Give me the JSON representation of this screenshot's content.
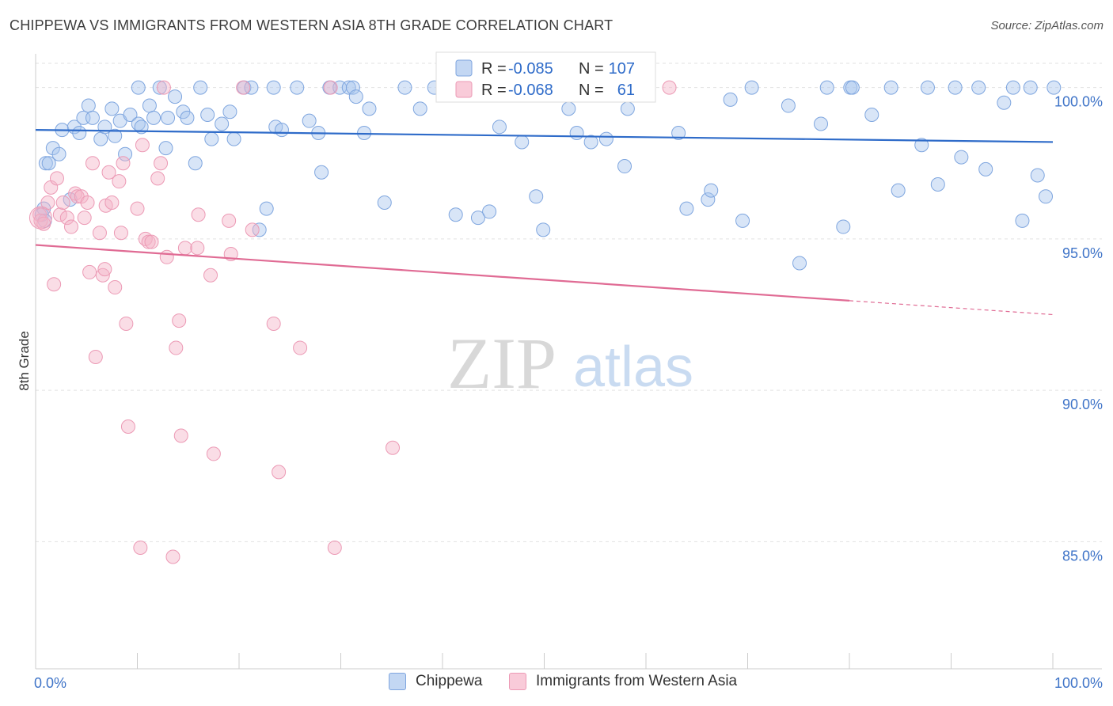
{
  "title": "CHIPPEWA VS IMMIGRANTS FROM WESTERN ASIA 8TH GRADE CORRELATION CHART",
  "source": "Source: ZipAtlas.com",
  "watermark": {
    "zip": "ZIP",
    "atlas": "atlas"
  },
  "chart_data": {
    "type": "scatter",
    "ylabel": "8th Grade",
    "xlim": [
      0,
      100
    ],
    "ylim": [
      80.8,
      100.8
    ],
    "x_tick_labels": [
      "0.0%",
      "100.0%"
    ],
    "y_ticks": [
      {
        "value": 100,
        "label": "100.0%"
      },
      {
        "value": 95,
        "label": "95.0%"
      },
      {
        "value": 90,
        "label": "90.0%"
      },
      {
        "value": 85,
        "label": "85.0%"
      }
    ],
    "grid": true,
    "legend_position": "top-center",
    "series": [
      {
        "name": "Chippewa",
        "color": "#a9c6ee",
        "line_color": "#2e6bc9",
        "stats": {
          "r_label": "R =",
          "r": "-0.085",
          "n_label": "N =",
          "n": "107"
        },
        "trend": {
          "x0": 0,
          "y0": 98.6,
          "x1": 100,
          "y1": 98.2
        },
        "points": [
          [
            0.8,
            96.0
          ],
          [
            0.6,
            95.8
          ],
          [
            0.9,
            95.6
          ],
          [
            1.0,
            97.5
          ],
          [
            1.3,
            97.5
          ],
          [
            1.7,
            98.0
          ],
          [
            2.3,
            97.8
          ],
          [
            2.6,
            98.6
          ],
          [
            3.4,
            96.3
          ],
          [
            3.8,
            98.7
          ],
          [
            4.3,
            98.5
          ],
          [
            4.7,
            99.0
          ],
          [
            5.2,
            99.4
          ],
          [
            5.6,
            99.0
          ],
          [
            6.4,
            98.3
          ],
          [
            6.8,
            98.7
          ],
          [
            7.5,
            99.3
          ],
          [
            7.8,
            98.4
          ],
          [
            8.3,
            98.9
          ],
          [
            8.8,
            97.8
          ],
          [
            9.3,
            99.1
          ],
          [
            10.1,
            98.8
          ],
          [
            10.4,
            98.7
          ],
          [
            10.1,
            100.0
          ],
          [
            11.2,
            99.4
          ],
          [
            11.6,
            99.0
          ],
          [
            12.2,
            100.0
          ],
          [
            12.8,
            98.0
          ],
          [
            13.0,
            99.0
          ],
          [
            13.7,
            99.7
          ],
          [
            14.5,
            99.2
          ],
          [
            14.9,
            99.0
          ],
          [
            15.7,
            97.5
          ],
          [
            16.2,
            100.0
          ],
          [
            16.9,
            99.1
          ],
          [
            17.3,
            98.3
          ],
          [
            18.3,
            98.8
          ],
          [
            19.1,
            99.2
          ],
          [
            19.5,
            98.3
          ],
          [
            20.5,
            100.0
          ],
          [
            21.2,
            100.0
          ],
          [
            22.0,
            95.3
          ],
          [
            22.7,
            96.0
          ],
          [
            23.4,
            100.0
          ],
          [
            23.6,
            98.7
          ],
          [
            24.2,
            98.6
          ],
          [
            25.7,
            100.0
          ],
          [
            26.9,
            98.9
          ],
          [
            27.8,
            98.5
          ],
          [
            28.1,
            97.2
          ],
          [
            28.9,
            100.0
          ],
          [
            29.9,
            100.0
          ],
          [
            30.8,
            100.0
          ],
          [
            31.2,
            100.0
          ],
          [
            31.5,
            99.7
          ],
          [
            32.3,
            98.5
          ],
          [
            32.8,
            99.3
          ],
          [
            34.3,
            96.2
          ],
          [
            36.3,
            100.0
          ],
          [
            37.8,
            99.3
          ],
          [
            39.2,
            100.0
          ],
          [
            41.3,
            95.8
          ],
          [
            43.5,
            95.7
          ],
          [
            44.6,
            95.9
          ],
          [
            45.0,
            100.0
          ],
          [
            45.6,
            98.7
          ],
          [
            46.7,
            100.0
          ],
          [
            47.8,
            98.2
          ],
          [
            49.2,
            96.4
          ],
          [
            49.9,
            95.3
          ],
          [
            52.4,
            99.3
          ],
          [
            53.2,
            98.5
          ],
          [
            54.6,
            98.2
          ],
          [
            56.1,
            98.3
          ],
          [
            57.9,
            97.4
          ],
          [
            58.2,
            99.3
          ],
          [
            63.2,
            98.5
          ],
          [
            64.0,
            96.0
          ],
          [
            66.1,
            96.3
          ],
          [
            66.4,
            96.6
          ],
          [
            68.3,
            99.6
          ],
          [
            69.5,
            95.6
          ],
          [
            70.4,
            100.0
          ],
          [
            74.0,
            99.4
          ],
          [
            75.1,
            94.2
          ],
          [
            77.2,
            98.8
          ],
          [
            77.8,
            100.0
          ],
          [
            79.4,
            95.4
          ],
          [
            80.1,
            100.0
          ],
          [
            80.3,
            100.0
          ],
          [
            82.2,
            99.1
          ],
          [
            84.1,
            100.0
          ],
          [
            84.8,
            96.6
          ],
          [
            87.1,
            98.1
          ],
          [
            87.7,
            100.0
          ],
          [
            88.7,
            96.8
          ],
          [
            90.4,
            100.0
          ],
          [
            91.0,
            97.7
          ],
          [
            92.7,
            100.0
          ],
          [
            93.4,
            97.3
          ],
          [
            95.2,
            99.5
          ],
          [
            96.1,
            100.0
          ],
          [
            97.0,
            95.6
          ],
          [
            97.8,
            100.0
          ],
          [
            98.5,
            97.1
          ],
          [
            99.3,
            96.4
          ],
          [
            100.1,
            100.0
          ]
        ]
      },
      {
        "name": "Immigrants from Western Asia",
        "color": "#f4b4c8",
        "line_color": "#e06b94",
        "stats": {
          "r_label": "R =",
          "r": "-0.068",
          "n_label": "N =",
          "n": "61"
        },
        "trend": {
          "x0": 0,
          "y0": 94.8,
          "x1": 100,
          "y1": 92.5,
          "solid_until": 80
        },
        "points": [
          [
            0.4,
            95.8
          ],
          [
            0.5,
            95.6
          ],
          [
            0.8,
            95.5
          ],
          [
            1.2,
            96.2
          ],
          [
            1.5,
            96.7
          ],
          [
            1.8,
            93.5
          ],
          [
            2.1,
            97.0
          ],
          [
            2.4,
            95.8
          ],
          [
            2.7,
            96.2
          ],
          [
            3.1,
            95.7
          ],
          [
            3.5,
            95.4
          ],
          [
            3.9,
            96.5
          ],
          [
            4.1,
            96.4
          ],
          [
            4.5,
            96.4
          ],
          [
            4.8,
            95.7
          ],
          [
            5.1,
            96.2
          ],
          [
            5.3,
            93.9
          ],
          [
            5.6,
            97.5
          ],
          [
            5.9,
            91.1
          ],
          [
            6.3,
            95.2
          ],
          [
            6.6,
            93.8
          ],
          [
            6.9,
            96.1
          ],
          [
            7.2,
            97.2
          ],
          [
            7.5,
            96.2
          ],
          [
            7.8,
            93.4
          ],
          [
            8.2,
            96.9
          ],
          [
            8.4,
            95.2
          ],
          [
            8.6,
            97.5
          ],
          [
            8.9,
            92.2
          ],
          [
            10.0,
            96.0
          ],
          [
            10.3,
            84.8
          ],
          [
            10.5,
            98.1
          ],
          [
            10.8,
            95.0
          ],
          [
            11.1,
            94.9
          ],
          [
            11.4,
            94.9
          ],
          [
            12.0,
            97.0
          ],
          [
            12.3,
            97.5
          ],
          [
            12.6,
            100.0
          ],
          [
            12.9,
            94.4
          ],
          [
            13.5,
            84.5
          ],
          [
            13.8,
            91.4
          ],
          [
            14.1,
            92.3
          ],
          [
            14.3,
            88.5
          ],
          [
            14.7,
            94.7
          ],
          [
            15.9,
            94.7
          ],
          [
            16.0,
            95.8
          ],
          [
            17.2,
            93.8
          ],
          [
            17.5,
            87.9
          ],
          [
            19.0,
            95.6
          ],
          [
            19.2,
            94.5
          ],
          [
            20.4,
            100.0
          ],
          [
            21.3,
            95.3
          ],
          [
            23.4,
            92.2
          ],
          [
            23.9,
            87.3
          ],
          [
            26.0,
            91.4
          ],
          [
            29.0,
            100.0
          ],
          [
            29.4,
            84.8
          ],
          [
            35.1,
            88.1
          ],
          [
            62.3,
            100.0
          ],
          [
            9.1,
            88.8
          ],
          [
            6.8,
            94.0
          ]
        ]
      }
    ]
  }
}
